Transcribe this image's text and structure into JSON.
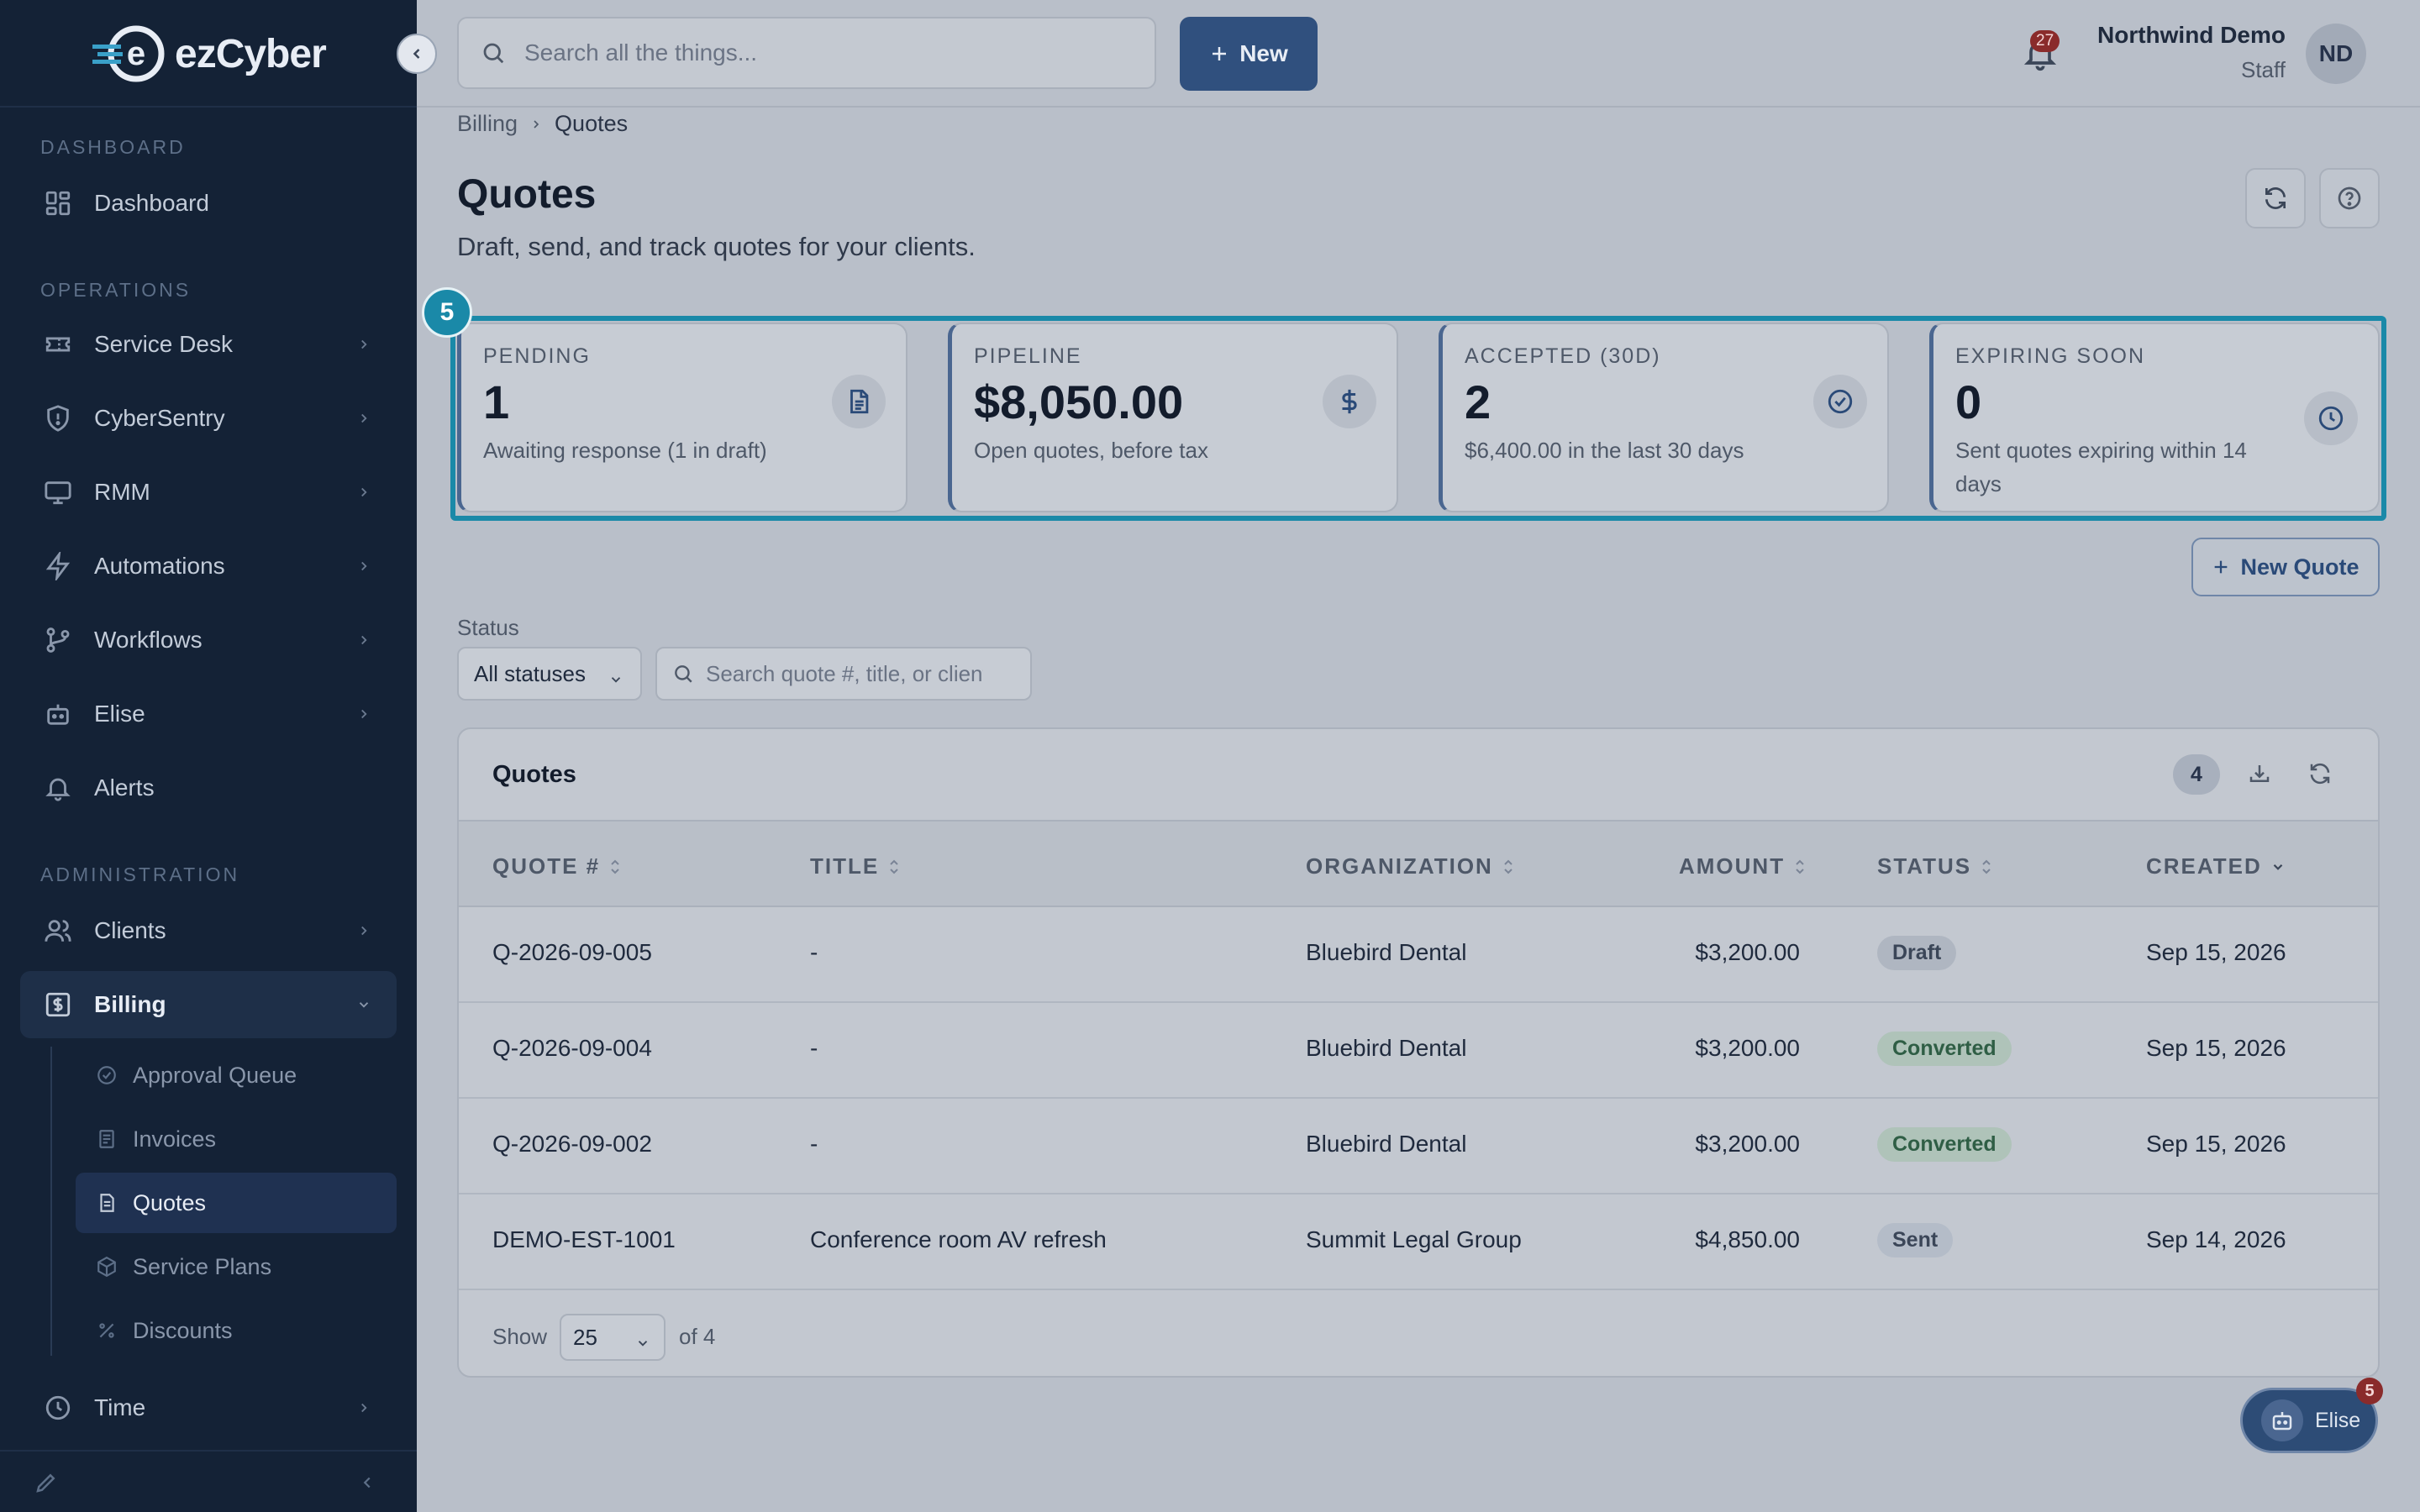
{
  "app": {
    "brand": "ezCyber"
  },
  "topbar": {
    "search_placeholder": "Search all the things...",
    "new_label": "New",
    "notification_count": "27",
    "user_name": "Northwind Demo",
    "user_role": "Staff",
    "avatar_initials": "ND"
  },
  "sidebar": {
    "sections": {
      "dashboard": "DASHBOARD",
      "operations": "OPERATIONS",
      "administration": "ADMINISTRATION"
    },
    "items": {
      "dashboard": "Dashboard",
      "service_desk": "Service Desk",
      "cybersentry": "CyberSentry",
      "rmm": "RMM",
      "automations": "Automations",
      "workflows": "Workflows",
      "elise": "Elise",
      "alerts": "Alerts",
      "clients": "Clients",
      "billing": "Billing",
      "time": "Time"
    },
    "billing_sub": {
      "approval_queue": "Approval Queue",
      "invoices": "Invoices",
      "quotes": "Quotes",
      "service_plans": "Service Plans",
      "discounts": "Discounts"
    }
  },
  "breadcrumb": {
    "parent": "Billing",
    "current": "Quotes"
  },
  "page": {
    "title": "Quotes",
    "subtitle": "Draft, send, and track quotes for your clients."
  },
  "tour_step": "5",
  "kpis": {
    "pending": {
      "label": "PENDING",
      "value": "1",
      "sub": "Awaiting response (1 in draft)"
    },
    "pipeline": {
      "label": "PIPELINE",
      "value": "$8,050.00",
      "sub": "Open quotes, before tax"
    },
    "accepted": {
      "label": "ACCEPTED (30D)",
      "value": "2",
      "sub": "$6,400.00 in the last 30 days"
    },
    "expiring": {
      "label": "EXPIRING SOON",
      "value": "0",
      "sub": "Sent quotes expiring within 14 days"
    }
  },
  "actions": {
    "new_quote": "New Quote"
  },
  "filters": {
    "status_label": "Status",
    "status_value": "All statuses",
    "search_placeholder": "Search quote #, title, or client"
  },
  "table": {
    "title": "Quotes",
    "count": "4",
    "columns": {
      "quote": "QUOTE #",
      "title": "TITLE",
      "organization": "ORGANIZATION",
      "amount": "AMOUNT",
      "status": "STATUS",
      "created": "CREATED"
    },
    "rows": [
      {
        "quote": "Q-2026-09-005",
        "title": "-",
        "organization": "Bluebird Dental",
        "amount": "$3,200.00",
        "status": "Draft",
        "created": "Sep 15, 2026"
      },
      {
        "quote": "Q-2026-09-004",
        "title": "-",
        "organization": "Bluebird Dental",
        "amount": "$3,200.00",
        "status": "Converted",
        "created": "Sep 15, 2026"
      },
      {
        "quote": "Q-2026-09-002",
        "title": "-",
        "organization": "Bluebird Dental",
        "amount": "$3,200.00",
        "status": "Converted",
        "created": "Sep 15, 2026"
      },
      {
        "quote": "DEMO-EST-1001",
        "title": "Conference room AV refresh",
        "organization": "Summit Legal Group",
        "amount": "$4,850.00",
        "status": "Sent",
        "created": "Sep 14, 2026"
      }
    ],
    "footer": {
      "show": "Show",
      "page_size": "25",
      "of_total": "of 4"
    }
  },
  "assistant": {
    "label": "Elise",
    "badge": "5"
  }
}
